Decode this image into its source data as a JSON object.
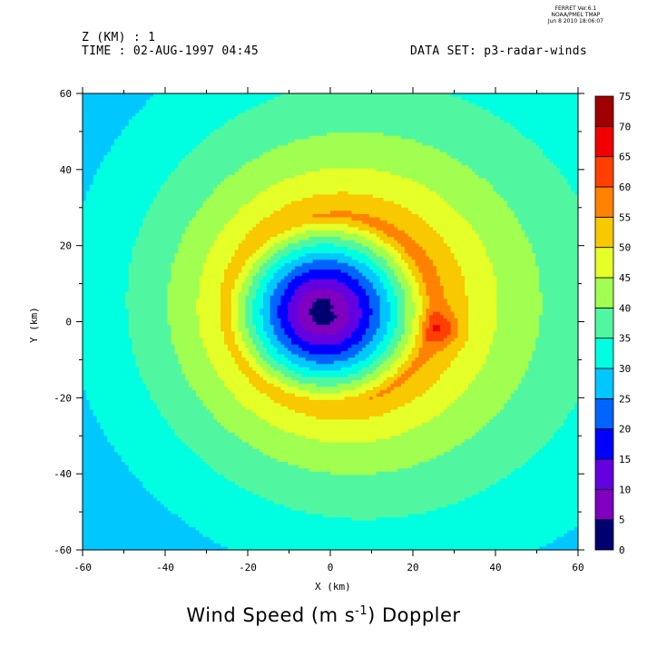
{
  "stamp": {
    "line1": "FERRET  Ver.6.1",
    "line2": "NOAA/PMEL TMAP",
    "line3": "Jun  8 2010 18:06:07"
  },
  "header": {
    "z_label": "Z (KM) : 1",
    "time_label": "TIME : 02-AUG-1997 04:45",
    "dataset_label": "DATA SET: p3-radar-winds"
  },
  "title": {
    "main": "Wind Speed (m s",
    "exp": "-1",
    "tail": ") Doppler"
  },
  "axes": {
    "xlabel": "X (km)",
    "ylabel": "Y (km)"
  },
  "chart_data": {
    "type": "heatmap",
    "title": "Wind Speed (m s-1) Doppler",
    "xlabel": "X (km)",
    "ylabel": "Y (km)",
    "xlim": [
      -60,
      60
    ],
    "ylim": [
      -60,
      60
    ],
    "x_ticks": [
      -60,
      -40,
      -20,
      0,
      20,
      40,
      60
    ],
    "y_ticks": [
      -60,
      -40,
      -20,
      0,
      20,
      40,
      60
    ],
    "colorbar": {
      "levels": [
        0,
        5,
        10,
        15,
        20,
        25,
        30,
        35,
        40,
        45,
        50,
        55,
        60,
        65,
        70,
        75
      ],
      "colors": [
        "#000070",
        "#7f00bf",
        "#6400e0",
        "#0000ff",
        "#0064ff",
        "#00c8ff",
        "#00ffe0",
        "#50f7a0",
        "#a0ff50",
        "#e5ff28",
        "#f8c800",
        "#ff8200",
        "#ff4000",
        "#f00000",
        "#a00000"
      ]
    },
    "field": {
      "description": "Hurricane wind field: calm eye near (0,4), eyewall maximum ~55 m/s near radius 25 km, local max 65 m/s near (27,-2), decaying outward to ~25 m/s at the corners.",
      "center": [
        0,
        3
      ],
      "peak_radius_km": 25,
      "peak_speed": 55,
      "local_max": {
        "x": 27,
        "y": -2,
        "value": 65
      },
      "eye_min_speed": 2
    },
    "grid": false
  }
}
